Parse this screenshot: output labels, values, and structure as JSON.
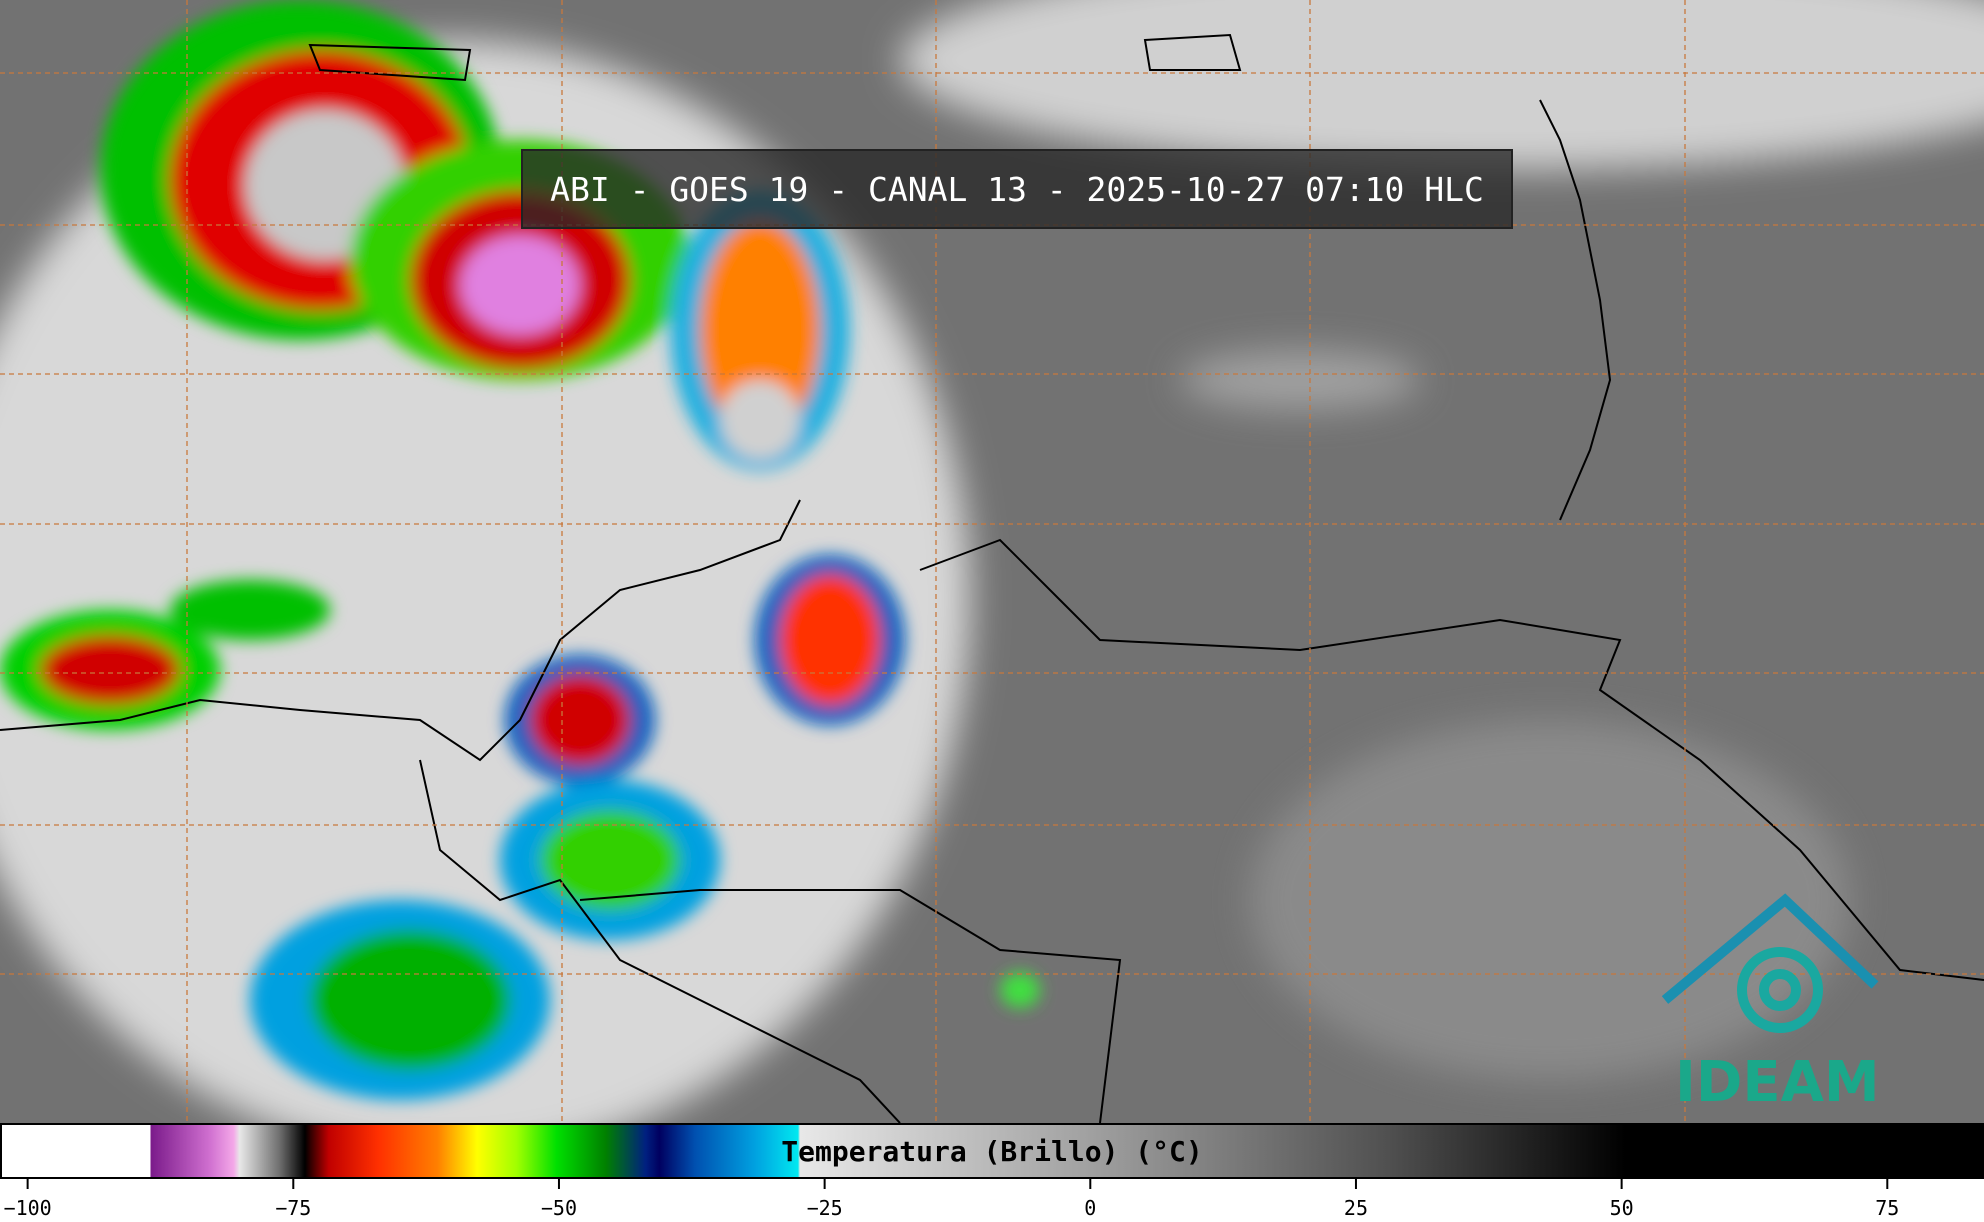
{
  "header": {
    "title": "ABI - GOES 19 - CANAL 13 - 2025-10-27 07:10 HLC"
  },
  "colorbar": {
    "label": "Temperatura (Brillo) (°C)",
    "lim": [
      -102.6,
      84.1
    ],
    "ticks": [
      {
        "value": -100,
        "label": "−100"
      },
      {
        "value": -75,
        "label": "−75"
      },
      {
        "value": -50,
        "label": "−50"
      },
      {
        "value": -25,
        "label": "−25"
      },
      0,
      25,
      50,
      75
    ]
  },
  "logo": {
    "text": "IDEAM"
  }
}
